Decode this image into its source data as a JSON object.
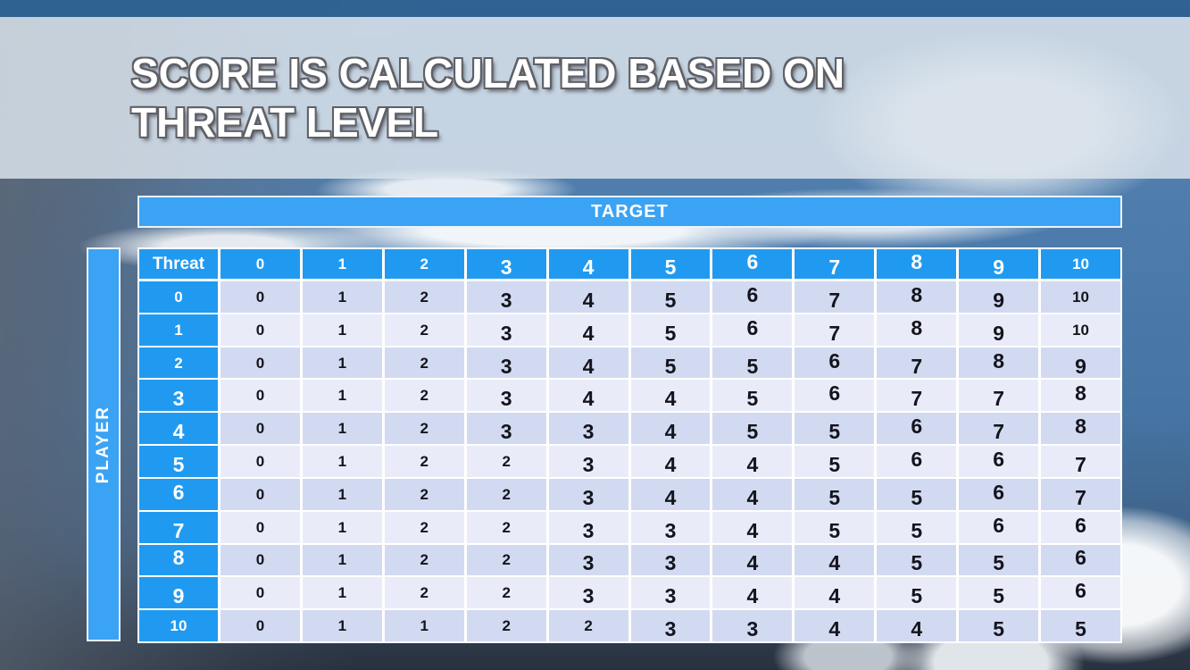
{
  "slide": {
    "title_line1": "SCORE IS CALCULATED BASED ON",
    "title_line2": "THREAT LEVEL"
  },
  "axes": {
    "target_label": "TARGET",
    "player_label": "PLAYER"
  },
  "table": {
    "corner_label": "Threat",
    "target_levels": [
      "0",
      "1",
      "2",
      "3",
      "4",
      "5",
      "6",
      "7",
      "8",
      "9",
      "10"
    ],
    "rows": [
      {
        "player_level": "0",
        "scores": [
          "0",
          "1",
          "2",
          "3",
          "4",
          "5",
          "6",
          "7",
          "8",
          "9",
          "10"
        ]
      },
      {
        "player_level": "1",
        "scores": [
          "0",
          "1",
          "2",
          "3",
          "4",
          "5",
          "6",
          "7",
          "8",
          "9",
          "10"
        ]
      },
      {
        "player_level": "2",
        "scores": [
          "0",
          "1",
          "2",
          "3",
          "4",
          "5",
          "5",
          "6",
          "7",
          "8",
          "9"
        ]
      },
      {
        "player_level": "3",
        "scores": [
          "0",
          "1",
          "2",
          "3",
          "4",
          "4",
          "5",
          "6",
          "7",
          "7",
          "8"
        ]
      },
      {
        "player_level": "4",
        "scores": [
          "0",
          "1",
          "2",
          "3",
          "3",
          "4",
          "5",
          "5",
          "6",
          "7",
          "8"
        ]
      },
      {
        "player_level": "5",
        "scores": [
          "0",
          "1",
          "2",
          "2",
          "3",
          "4",
          "4",
          "5",
          "6",
          "6",
          "7"
        ]
      },
      {
        "player_level": "6",
        "scores": [
          "0",
          "1",
          "2",
          "2",
          "3",
          "4",
          "4",
          "5",
          "5",
          "6",
          "7"
        ]
      },
      {
        "player_level": "7",
        "scores": [
          "0",
          "1",
          "2",
          "2",
          "3",
          "3",
          "4",
          "5",
          "5",
          "6",
          "6"
        ]
      },
      {
        "player_level": "8",
        "scores": [
          "0",
          "1",
          "2",
          "2",
          "3",
          "3",
          "4",
          "4",
          "5",
          "5",
          "6"
        ]
      },
      {
        "player_level": "9",
        "scores": [
          "0",
          "1",
          "2",
          "2",
          "3",
          "3",
          "4",
          "4",
          "5",
          "5",
          "6"
        ]
      },
      {
        "player_level": "10",
        "scores": [
          "0",
          "1",
          "1",
          "2",
          "2",
          "3",
          "3",
          "4",
          "4",
          "5",
          "5"
        ]
      }
    ]
  },
  "colors": {
    "accent_blue": "#209af1",
    "bar_blue": "#3ba3f4",
    "top_bar": "#2e6191",
    "row_even": "#d2daf1",
    "row_odd": "#e9ecf8",
    "grid_line": "#ffffff",
    "title_text": "#ffffff",
    "title_outline": "#5f6066",
    "score_text": "#14141d"
  }
}
